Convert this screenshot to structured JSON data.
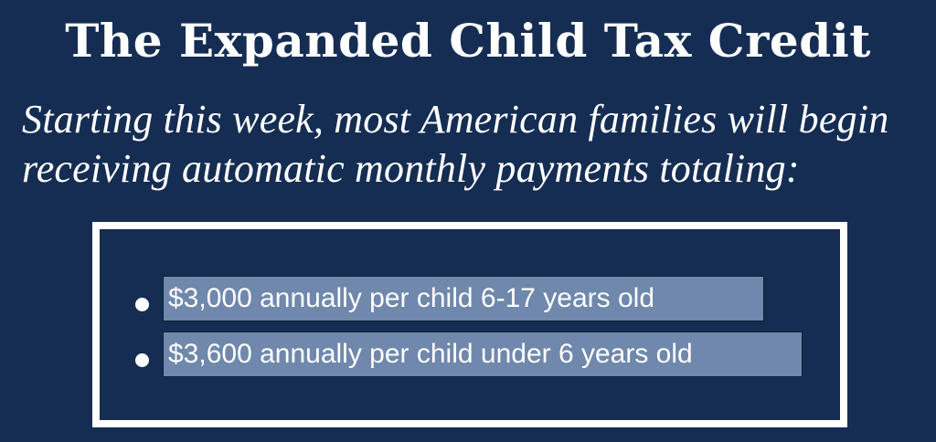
{
  "title": "The Expanded Child Tax Credit",
  "subtitle": {
    "line1": "Starting this week, most American families will begin",
    "line2": "receiving automatic monthly payments totaling:"
  },
  "bullets": [
    {
      "text": "$3,000 annually per child 6-17 years old"
    },
    {
      "text": "$3,600 annually per child under 6 years old"
    }
  ],
  "colors": {
    "background": "#152d52",
    "highlight": "#6f88ac",
    "text": "#ffffff"
  }
}
